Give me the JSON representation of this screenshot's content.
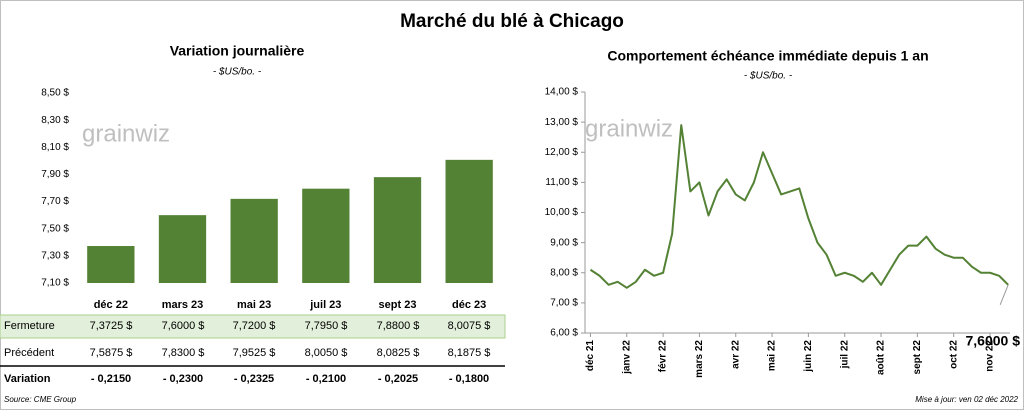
{
  "title": "Marché du blé à Chicago",
  "logo": "grainwiz",
  "chart_data": [
    {
      "type": "bar",
      "title": "Variation journalière",
      "subtitle": "- $US/bo. -",
      "categories": [
        "déc 22",
        "mars 23",
        "mai 23",
        "juil 23",
        "sept 23",
        "déc 23"
      ],
      "values": [
        7.3725,
        7.6,
        7.72,
        7.795,
        7.88,
        8.0075
      ],
      "color": "#548235",
      "ylim": [
        7.1,
        8.5
      ],
      "yticks": [
        {
          "value": 7.1,
          "label": "7,10 $"
        },
        {
          "value": 7.3,
          "label": "7,30 $"
        },
        {
          "value": 7.5,
          "label": "7,50 $"
        },
        {
          "value": 7.7,
          "label": "7,70 $"
        },
        {
          "value": 7.9,
          "label": "7,90 $"
        },
        {
          "value": 8.1,
          "label": "8,10 $"
        },
        {
          "value": 8.3,
          "label": "8,30 $"
        },
        {
          "value": 8.5,
          "label": "8,50 $"
        }
      ]
    },
    {
      "type": "line",
      "title": "Comportement  échéance immédiate depuis 1 an",
      "subtitle": "- $US/bo. -",
      "x": [
        0,
        0.25,
        0.5,
        0.75,
        1,
        1.25,
        1.5,
        1.75,
        2,
        2.25,
        2.5,
        2.75,
        3,
        3.25,
        3.5,
        3.75,
        4,
        4.25,
        4.5,
        4.75,
        5,
        5.25,
        5.5,
        5.75,
        6,
        6.25,
        6.5,
        6.75,
        7,
        7.25,
        7.5,
        7.75,
        8,
        8.25,
        8.5,
        8.75,
        9,
        9.25,
        9.5,
        9.75,
        10,
        10.25,
        10.5,
        10.75,
        11,
        11.25,
        11.5
      ],
      "values": [
        8.1,
        7.9,
        7.6,
        7.7,
        7.5,
        7.7,
        8.1,
        7.9,
        8.0,
        9.3,
        12.9,
        10.7,
        11.0,
        9.9,
        10.7,
        11.1,
        10.6,
        10.4,
        11.0,
        12.0,
        11.3,
        10.6,
        10.7,
        10.8,
        9.8,
        9.0,
        8.6,
        7.9,
        8.0,
        7.9,
        7.7,
        8.0,
        7.6,
        8.1,
        8.6,
        8.9,
        8.9,
        9.2,
        8.8,
        8.6,
        8.5,
        8.5,
        8.2,
        8.0,
        8.0,
        7.9,
        7.6
      ],
      "color": "#548235",
      "xlim": [
        -0.15,
        11.55
      ],
      "xticks": [
        {
          "value": 0,
          "label": "déc 21"
        },
        {
          "value": 1,
          "label": "janv 22"
        },
        {
          "value": 2,
          "label": "févr 22"
        },
        {
          "value": 3,
          "label": "mars 22"
        },
        {
          "value": 4,
          "label": "avr 22"
        },
        {
          "value": 5,
          "label": "mai 22"
        },
        {
          "value": 6,
          "label": "juin 22"
        },
        {
          "value": 7,
          "label": "juil 22"
        },
        {
          "value": 8,
          "label": "août 22"
        },
        {
          "value": 9,
          "label": "sept 22"
        },
        {
          "value": 10,
          "label": "oct 22"
        },
        {
          "value": 11,
          "label": "nov 22"
        }
      ],
      "ylim": [
        6,
        14
      ],
      "yticks": [
        {
          "value": 6,
          "label": "6,00 $"
        },
        {
          "value": 7,
          "label": "7,00 $"
        },
        {
          "value": 8,
          "label": "8,00 $"
        },
        {
          "value": 9,
          "label": "9,00 $"
        },
        {
          "value": 10,
          "label": "10,00 $"
        },
        {
          "value": 11,
          "label": "11,00 $"
        },
        {
          "value": 12,
          "label": "12,00 $"
        },
        {
          "value": 13,
          "label": "13,00 $"
        },
        {
          "value": 14,
          "label": "14,00 $"
        }
      ],
      "annotation": "7,6000 $"
    }
  ],
  "table": {
    "rows": [
      [
        "Fermeture",
        "7,3725  $",
        "7,6000  $",
        "7,7200  $",
        "7,7950  $",
        "7,8800  $",
        "8,0075  $"
      ],
      [
        "Précédent",
        "7,5875  $",
        "7,8300  $",
        "7,9525  $",
        "8,0050  $",
        "8,0825  $",
        "8,1875  $"
      ],
      [
        "Variation",
        "- 0,2150",
        "- 0,2300",
        "- 0,2325",
        "- 0,2100",
        "- 0,2025",
        "- 0,1800"
      ]
    ]
  },
  "source": "Source: CME Group",
  "updated": "Mise à jour: ven 02 déc 2022"
}
